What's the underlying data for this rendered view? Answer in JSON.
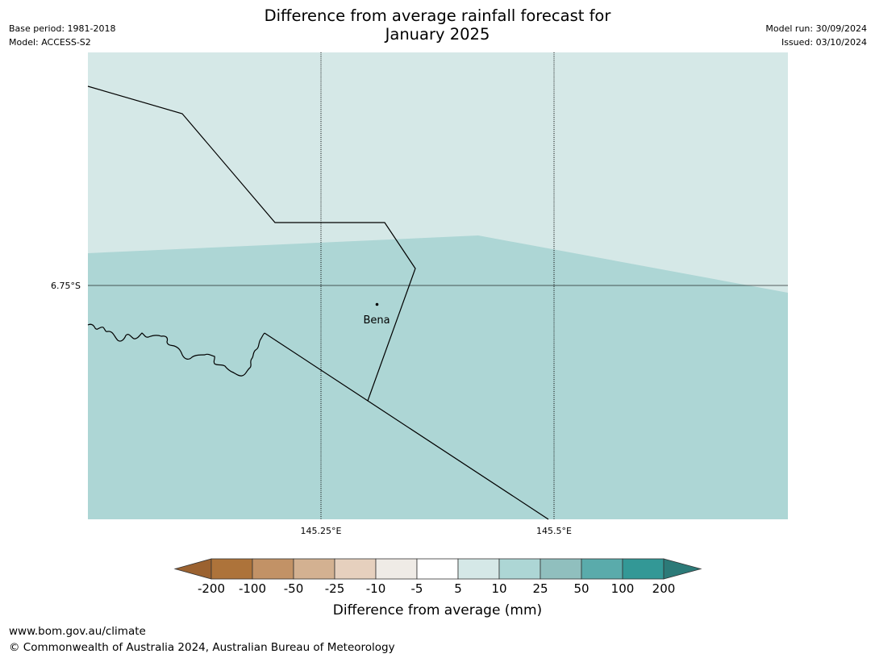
{
  "header": {
    "base_period": "Base period: 1981-2018",
    "model": "Model: ACCESS-S2",
    "model_run": "Model run: 30/09/2024",
    "issued": "Issued: 03/10/2024",
    "title_line1": "Difference from average rainfall forecast for",
    "title_line2": "January 2025"
  },
  "map": {
    "lat_label": "6.75°S",
    "lon_labels": [
      "145.25°E",
      "145.5°E"
    ],
    "place": {
      "name": "Bena"
    },
    "colors": {
      "category_5_10": "#d5e8e7",
      "category_10_25": "#add6d5",
      "boundary": "#000000",
      "gridline": "#000000"
    }
  },
  "legend": {
    "title": "Difference from average (mm)",
    "tick_labels": [
      "-200",
      "-100",
      "-50",
      "-25",
      "-10",
      "-5",
      "5",
      "10",
      "25",
      "50",
      "100",
      "200"
    ],
    "colors": [
      "#9b6230",
      "#ad733a",
      "#c29266",
      "#d3b191",
      "#e6d0be",
      "#efebe6",
      "#ffffff",
      "#d5e8e7",
      "#add6d5",
      "#90bfbe",
      "#5aabab",
      "#339896",
      "#2c7a78"
    ]
  },
  "footer": {
    "url": "www.bom.gov.au/climate",
    "copyright": "© Commonwealth of Australia 2024, Australian Bureau of Meteorology"
  }
}
